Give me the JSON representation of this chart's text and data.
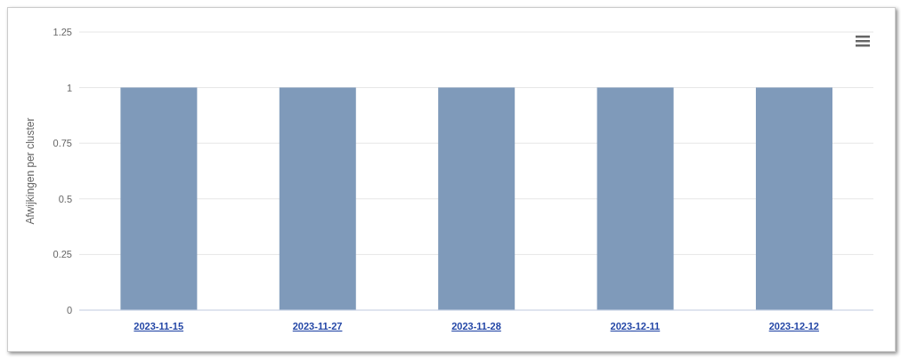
{
  "chart_data": {
    "type": "bar",
    "ylabel": "Afwijkingen per cluster",
    "categories": [
      "2023-11-15",
      "2023-11-27",
      "2023-11-28",
      "2023-12-11",
      "2023-12-12"
    ],
    "values": [
      1,
      1,
      1,
      1,
      1
    ],
    "color": "#7f9aba",
    "ylim": [
      0,
      1.25
    ],
    "yticks": [
      0,
      0.25,
      0.5,
      0.75,
      1,
      1.25
    ],
    "grid": "y"
  }
}
